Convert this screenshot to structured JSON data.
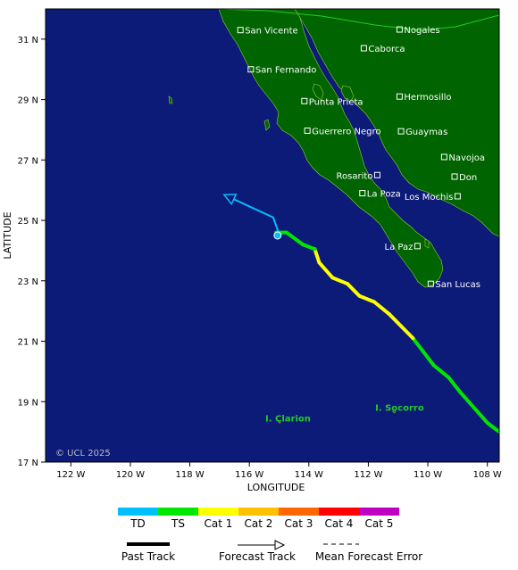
{
  "map": {
    "copyright": "© UCL 2025",
    "x_axis_title": "LONGITUDE",
    "y_axis_title": "LATITUDE",
    "lon_ticks": [
      {
        "lon": -122,
        "label": "122 W"
      },
      {
        "lon": -120,
        "label": "120 W"
      },
      {
        "lon": -118,
        "label": "118 W"
      },
      {
        "lon": -116,
        "label": "116 W"
      },
      {
        "lon": -114,
        "label": "114 W"
      },
      {
        "lon": -112,
        "label": "112 W"
      },
      {
        "lon": -110,
        "label": "110 W"
      },
      {
        "lon": -108,
        "label": "108 W"
      }
    ],
    "lat_ticks": [
      {
        "lat": 31,
        "label": "31 N"
      },
      {
        "lat": 29,
        "label": "29 N"
      },
      {
        "lat": 27,
        "label": "27 N"
      },
      {
        "lat": 25,
        "label": "25 N"
      },
      {
        "lat": 23,
        "label": "23 N"
      },
      {
        "lat": 21,
        "label": "21 N"
      },
      {
        "lat": 19,
        "label": "19 N"
      },
      {
        "lat": 17,
        "label": "17 N"
      }
    ],
    "lon_range": [
      -122.85,
      -107.6
    ],
    "lat_range": [
      17,
      32
    ],
    "colors": {
      "ocean": "#0c1a78",
      "land": "#006400",
      "cat_td": "#00bfff",
      "cat_ts": "#00e600",
      "cat1": "#ffff00",
      "cat2": "#ffc000",
      "cat3": "#ff6600",
      "cat4": "#ff0000",
      "cat5": "#c000c0",
      "island_label": "#22cc22"
    },
    "cities": [
      {
        "name": "San Vicente",
        "lon": -116.3,
        "lat": 31.3,
        "label_side": "right"
      },
      {
        "name": "Nogales",
        "lon": -110.95,
        "lat": 31.32,
        "label_side": "right"
      },
      {
        "name": "Caborca",
        "lon": -112.15,
        "lat": 30.7,
        "label_side": "right"
      },
      {
        "name": "San Fernando",
        "lon": -115.95,
        "lat": 30.0,
        "label_side": "right"
      },
      {
        "name": "Punta Prieta",
        "lon": -114.15,
        "lat": 28.95,
        "label_side": "right"
      },
      {
        "name": "Hermosillo",
        "lon": -110.95,
        "lat": 29.1,
        "label_side": "right"
      },
      {
        "name": "Guerrero Negro",
        "lon": -114.05,
        "lat": 27.97,
        "label_side": "right"
      },
      {
        "name": "Guaymas",
        "lon": -110.9,
        "lat": 27.95,
        "label_side": "right"
      },
      {
        "name": "Navojoa",
        "lon": -109.45,
        "lat": 27.1,
        "label_side": "right"
      },
      {
        "name": "Rosarito",
        "lon": -111.7,
        "lat": 26.5,
        "label_side": "left"
      },
      {
        "name": "Don",
        "lon": -109.1,
        "lat": 26.45,
        "label_side": "right"
      },
      {
        "name": "La Poza",
        "lon": -112.2,
        "lat": 25.9,
        "label_side": "right"
      },
      {
        "name": "Los Mochis",
        "lon": -109.0,
        "lat": 25.8,
        "label_side": "left"
      },
      {
        "name": "La Paz",
        "lon": -110.35,
        "lat": 24.15,
        "label_side": "left"
      },
      {
        "name": "San Lucas",
        "lon": -109.9,
        "lat": 22.9,
        "label_side": "right"
      }
    ],
    "islands": [
      {
        "name": "I. Clarion",
        "lon": -114.7,
        "lat": 18.35
      },
      {
        "name": "I. Socorro",
        "lon": -110.95,
        "lat": 18.7
      }
    ],
    "past_track": [
      {
        "lon": -107.6,
        "lat": 18.0,
        "cat": "td"
      },
      {
        "lon": -108.0,
        "lat": 18.3,
        "cat": "ts"
      },
      {
        "lon": -108.9,
        "lat": 19.3,
        "cat": "ts"
      },
      {
        "lon": -109.3,
        "lat": 19.8,
        "cat": "ts"
      },
      {
        "lon": -109.8,
        "lat": 20.2,
        "cat": "ts"
      },
      {
        "lon": -110.5,
        "lat": 21.1,
        "cat": "ts"
      },
      {
        "lon": -111.3,
        "lat": 21.9,
        "cat": "cat1"
      },
      {
        "lon": -111.8,
        "lat": 22.3,
        "cat": "cat1"
      },
      {
        "lon": -112.3,
        "lat": 22.5,
        "cat": "cat1"
      },
      {
        "lon": -112.7,
        "lat": 22.9,
        "cat": "cat1"
      },
      {
        "lon": -113.2,
        "lat": 23.1,
        "cat": "cat1"
      },
      {
        "lon": -113.65,
        "lat": 23.6,
        "cat": "cat1"
      },
      {
        "lon": -113.8,
        "lat": 24.05,
        "cat": "cat1"
      },
      {
        "lon": -114.2,
        "lat": 24.2,
        "cat": "ts"
      },
      {
        "lon": -114.75,
        "lat": 24.6,
        "cat": "ts"
      },
      {
        "lon": -115.1,
        "lat": 24.6,
        "cat": "ts"
      }
    ],
    "forecast_track": [
      {
        "lon": -115.0,
        "lat": 24.55
      },
      {
        "lon": -115.2,
        "lat": 25.1
      },
      {
        "lon": -116.85,
        "lat": 25.85
      }
    ],
    "current_position": {
      "lon": -115.05,
      "lat": 24.5
    }
  },
  "legend": {
    "categories": [
      {
        "label": "TD",
        "color": "#00bfff"
      },
      {
        "label": "TS",
        "color": "#00e600"
      },
      {
        "label": "Cat 1",
        "color": "#ffff00"
      },
      {
        "label": "Cat 2",
        "color": "#ffc000"
      },
      {
        "label": "Cat 3",
        "color": "#ff6600"
      },
      {
        "label": "Cat 4",
        "color": "#ff0000"
      },
      {
        "label": "Cat 5",
        "color": "#c000c0"
      }
    ],
    "past_track_label": "Past Track",
    "forecast_track_label": "Forecast Track",
    "mean_error_label": "Mean Forecast Error"
  }
}
